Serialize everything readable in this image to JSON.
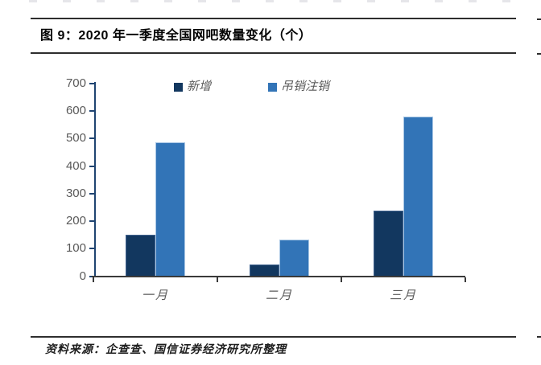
{
  "chart_data": {
    "type": "bar",
    "title": "图 9：2020 年一季度全国网吧数量变化（个）",
    "categories": [
      "一月",
      "二月",
      "三月"
    ],
    "series": [
      {
        "name": "新增",
        "values": [
          150,
          40,
          235
        ],
        "color": "#12375F",
        "border_color": "#416390"
      },
      {
        "name": "吊销注销",
        "values": [
          485,
          130,
          578
        ],
        "color": "#3274B7",
        "border_color": "#A9C7E5"
      }
    ],
    "ylim": [
      0,
      700
    ],
    "yticks": [
      700,
      600,
      500,
      400,
      300,
      200,
      100,
      0
    ],
    "xlabel": "",
    "ylabel": "",
    "grid": false,
    "legend_position": "top"
  },
  "source": {
    "text": "资料来源：企查查、国信证券经济研究所整理"
  }
}
